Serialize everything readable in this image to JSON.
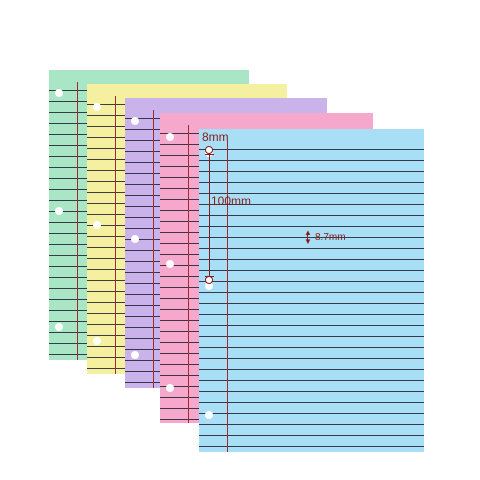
{
  "sheets": [
    {
      "name": "green",
      "color": "#a9e6c6"
    },
    {
      "name": "yellow",
      "color": "#f4f0a0"
    },
    {
      "name": "purple",
      "color": "#c9b3ea"
    },
    {
      "name": "pink",
      "color": "#f6a8cc"
    },
    {
      "name": "blue",
      "color": "#a9dff6"
    }
  ],
  "annotations": {
    "top_margin": "8mm",
    "hole_spacing": "100mm",
    "line_spacing": "8.7mm"
  },
  "colors": {
    "rule_line": "#1f1f2e",
    "margin_line": "#a32a2a",
    "annotation": "#8a1a1a"
  }
}
